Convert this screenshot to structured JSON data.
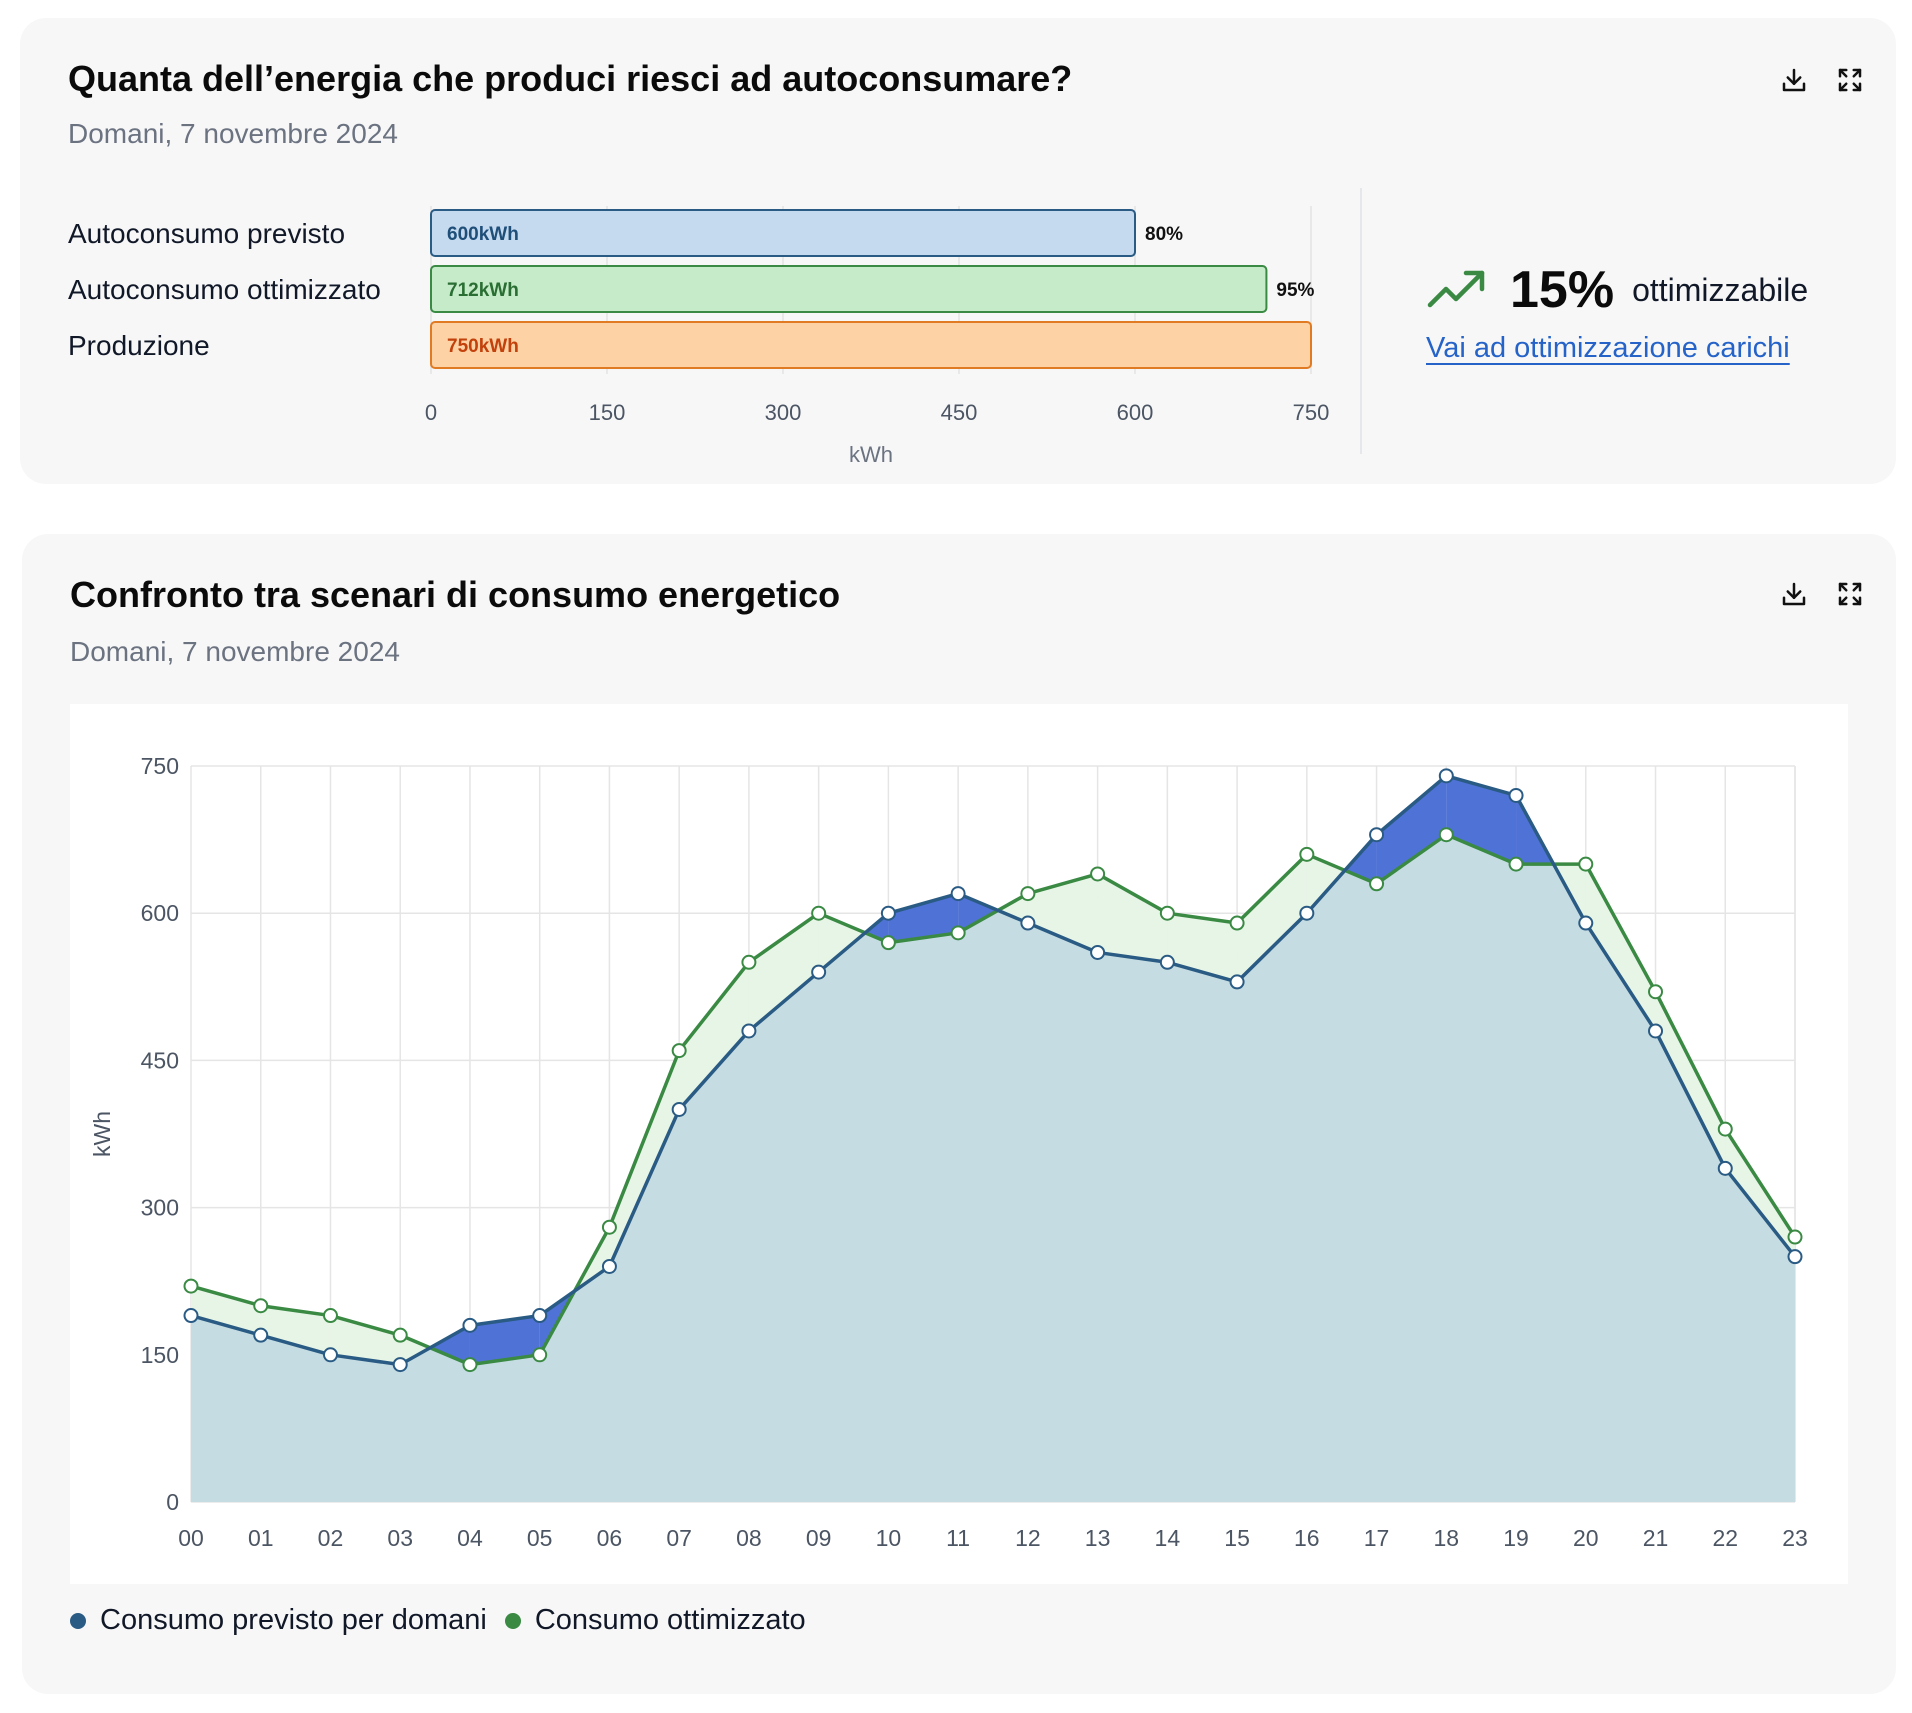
{
  "card1": {
    "title": "Quanta dell’energia che produci riesci ad autoconsumare?",
    "date": "Domani, 7 novembre 2024",
    "kpi": {
      "value": "15%",
      "label": "ottimizzabile",
      "link": "Vai ad ottimizzazione carichi",
      "icon": "trending-up-icon"
    },
    "icons": [
      "download-icon",
      "expand-icon"
    ]
  },
  "card2": {
    "title": "Confronto tra scenari di consumo energetico",
    "date": "Domani, 7 novembre 2024",
    "icons": [
      "download-icon",
      "expand-icon"
    ]
  },
  "colors": {
    "previsto_line": "#2a5b84",
    "previsto_fill": "#c5dce3",
    "previsto_surplus": "#4f72d6",
    "ottimizzato_line": "#3a8a44",
    "ottimizzato_fill": "#e7f5e6",
    "bar1_fill": "#c5daef",
    "bar1_stroke": "#2a5b84",
    "bar1_text": "#1f4e79",
    "bar2_fill": "#c6ebc8",
    "bar2_stroke": "#3a8a44",
    "bar2_text": "#2a6e33",
    "bar3_fill": "#fdd3a6",
    "bar3_stroke": "#e07b24",
    "bar3_text": "#c2410c"
  },
  "chart_data": [
    {
      "type": "bar",
      "orientation": "horizontal",
      "categories": [
        "Autoconsumo previsto",
        "Autoconsumo ottimizzato",
        "Produzione"
      ],
      "values": [
        600,
        712,
        750
      ],
      "data_labels": [
        "600kWh",
        "712kWh",
        "750kWh"
      ],
      "percent_labels": [
        "80%",
        "95%",
        ""
      ],
      "xlabel": "kWh",
      "xlim": [
        0,
        750
      ],
      "xticks": [
        0,
        150,
        300,
        450,
        600,
        750
      ],
      "grid": true
    },
    {
      "type": "area",
      "categories": [
        "00",
        "01",
        "02",
        "03",
        "04",
        "05",
        "06",
        "07",
        "08",
        "09",
        "10",
        "11",
        "12",
        "13",
        "14",
        "15",
        "16",
        "17",
        "18",
        "19",
        "20",
        "21",
        "22",
        "23"
      ],
      "series": [
        {
          "name": "Consumo previsto per domani",
          "values": [
            190,
            170,
            150,
            140,
            180,
            190,
            240,
            400,
            480,
            540,
            600,
            620,
            590,
            560,
            550,
            530,
            600,
            680,
            740,
            720,
            590,
            480,
            340,
            250
          ]
        },
        {
          "name": "Consumo ottimizzato",
          "values": [
            220,
            200,
            190,
            170,
            140,
            150,
            280,
            460,
            550,
            600,
            570,
            580,
            620,
            640,
            600,
            590,
            660,
            630,
            680,
            650,
            650,
            520,
            380,
            270
          ]
        }
      ],
      "ylabel": "kWh",
      "ylim": [
        0,
        750
      ],
      "yticks": [
        0,
        150,
        300,
        450,
        600,
        750
      ],
      "grid": true,
      "legend_position": "bottom-left"
    }
  ]
}
